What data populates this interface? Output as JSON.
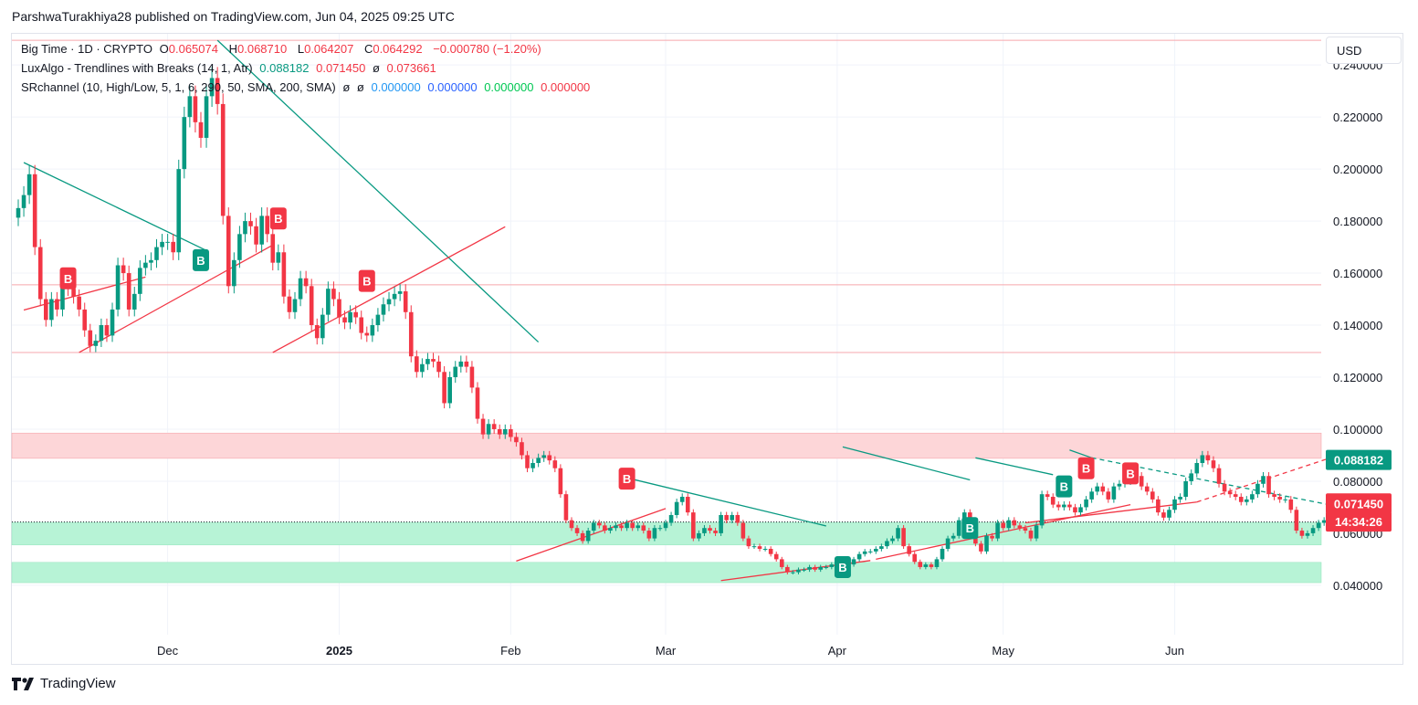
{
  "publisher_line": "ParshwaTurakhiya28 published on TradingView.com, Jun 04, 2025 09:25 UTC",
  "legend": {
    "symbol": "Big Time · 1D · CRYPTO",
    "o_label": "O",
    "o_value": "0.065074",
    "h_label": "H",
    "h_value": "0.068710",
    "l_label": "L",
    "l_value": "0.064207",
    "c_label": "C",
    "c_value": "0.064292",
    "change": "−0.000780 (−1.20%)",
    "indicator1": "LuxAlgo - Trendlines with Breaks (14, 1, Atr)",
    "ind1_v1": "0.088182",
    "ind1_v2": "0.071450",
    "ind1_v3": "ø",
    "ind1_v4": "0.073661",
    "indicator2": "SRchannel (10, High/Low, 5, 1, 6, 290, 50, SMA, 200, SMA)",
    "ind2_na1": "ø",
    "ind2_na2": "ø",
    "ind2_v1": "0.000000",
    "ind2_v2": "0.000000",
    "ind2_v3": "0.000000",
    "ind2_v4": "0.000000"
  },
  "currency_button": "USD",
  "branding": "TradingView",
  "colors": {
    "up": "#089981",
    "down": "#f23645",
    "support_zone": "#b7f3d6",
    "resistance_zone": "#fdd6d8",
    "trend_down": "#089981",
    "trend_up": "#f23645"
  },
  "chart_data": {
    "type": "candlestick",
    "symbol": "Big Time",
    "interval": "1D",
    "ylim": [
      0.021,
      0.252
    ],
    "y_ticks": [
      "0.240000",
      "0.220000",
      "0.200000",
      "0.180000",
      "0.160000",
      "0.140000",
      "0.120000",
      "0.100000",
      "0.080000",
      "0.060000",
      "0.040000"
    ],
    "x_ticks": [
      {
        "label": "Dec",
        "date": "2024-12-01",
        "bold": false
      },
      {
        "label": "2025",
        "date": "2025-01-01",
        "bold": true
      },
      {
        "label": "Feb",
        "date": "2025-02-01",
        "bold": false
      },
      {
        "label": "Mar",
        "date": "2025-03-01",
        "bold": false
      },
      {
        "label": "Apr",
        "date": "2025-04-01",
        "bold": false
      },
      {
        "label": "May",
        "date": "2025-05-01",
        "bold": false
      },
      {
        "label": "Jun",
        "date": "2025-06-01",
        "bold": false
      }
    ],
    "price_labels": [
      {
        "text": "0.088182",
        "value": 0.088182,
        "color": "#089981"
      },
      {
        "text": "0.071450",
        "value": 0.07145,
        "color": "#f23645"
      },
      {
        "text": "14:34:26",
        "value": 0.0645,
        "color": "#f23645"
      }
    ],
    "current_price": 0.064292,
    "zones": [
      {
        "kind": "resistance",
        "from": 0.0888,
        "to": 0.0985
      },
      {
        "kind": "support",
        "from": 0.0555,
        "to": 0.0642
      },
      {
        "kind": "support",
        "from": 0.041,
        "to": 0.0488
      }
    ],
    "horizontal_levels": [
      0.2495,
      0.1555,
      0.1295
    ],
    "trendlines": [
      {
        "color": "teal",
        "from": [
          "2024-11-05",
          0.2025
        ],
        "to": [
          "2024-12-08",
          0.1687
        ],
        "dashed": false
      },
      {
        "color": "teal",
        "from": [
          "2024-12-10",
          0.2495
        ],
        "to": [
          "2025-02-06",
          0.1335
        ],
        "dashed": false
      },
      {
        "color": "red",
        "from": [
          "2024-11-15",
          0.1295
        ],
        "to": [
          "2024-12-20",
          0.1708
        ],
        "dashed": false
      },
      {
        "color": "red",
        "from": [
          "2024-11-05",
          0.1458
        ],
        "to": [
          "2024-11-27",
          0.1585
        ],
        "dashed": false
      },
      {
        "color": "red",
        "from": [
          "2024-12-20",
          0.1295
        ],
        "to": [
          "2025-01-31",
          0.1778
        ],
        "dashed": false
      },
      {
        "color": "teal",
        "from": [
          "2025-02-21",
          0.0818
        ],
        "to": [
          "2025-03-30",
          0.0628
        ],
        "dashed": false
      },
      {
        "color": "red",
        "from": [
          "2025-02-02",
          0.0493
        ],
        "to": [
          "2025-03-01",
          0.0695
        ],
        "dashed": false
      },
      {
        "color": "red",
        "from": [
          "2025-03-11",
          0.0418
        ],
        "to": [
          "2025-04-07",
          0.0495
        ],
        "dashed": false
      },
      {
        "color": "teal",
        "from": [
          "2025-04-02",
          0.0932
        ],
        "to": [
          "2025-04-25",
          0.0805
        ],
        "dashed": false
      },
      {
        "color": "teal",
        "from": [
          "2025-04-26",
          0.089
        ],
        "to": [
          "2025-05-10",
          0.0825
        ],
        "dashed": false
      },
      {
        "color": "red",
        "from": [
          "2025-04-08",
          0.05
        ],
        "to": [
          "2025-05-24",
          0.071
        ],
        "dashed": false
      },
      {
        "color": "red",
        "from": [
          "2025-05-05",
          0.064
        ],
        "to": [
          "2025-06-05",
          0.072
        ],
        "dashed": false
      },
      {
        "color": "red",
        "from": [
          "2025-06-05",
          0.072
        ],
        "to": [
          "2025-07-02",
          0.091
        ],
        "dashed": true
      },
      {
        "color": "teal",
        "from": [
          "2025-05-13",
          0.092
        ],
        "to": [
          "2025-05-17",
          0.089
        ],
        "dashed": false
      },
      {
        "color": "teal",
        "from": [
          "2025-05-17",
          0.089
        ],
        "to": [
          "2025-06-30",
          0.0705
        ],
        "dashed": true
      }
    ],
    "signals": [
      {
        "type": "bearish",
        "label": "B",
        "date": "2024-11-13",
        "price": 0.158
      },
      {
        "type": "bullish",
        "label": "B",
        "date": "2024-12-07",
        "price": 0.165
      },
      {
        "type": "bearish",
        "label": "B",
        "date": "2024-12-21",
        "price": 0.181
      },
      {
        "type": "bearish",
        "label": "B",
        "date": "2025-01-06",
        "price": 0.157
      },
      {
        "type": "bearish",
        "label": "B",
        "date": "2025-02-22",
        "price": 0.081
      },
      {
        "type": "bullish",
        "label": "B",
        "date": "2025-04-02",
        "price": 0.047
      },
      {
        "type": "bullish",
        "label": "B",
        "date": "2025-04-25",
        "price": 0.062
      },
      {
        "type": "bullish",
        "label": "B",
        "date": "2025-05-12",
        "price": 0.078
      },
      {
        "type": "bearish",
        "label": "B",
        "date": "2025-05-16",
        "price": 0.085
      },
      {
        "type": "bearish",
        "label": "B",
        "date": "2025-05-24",
        "price": 0.083
      }
    ],
    "close_series_start": "2024-11-04",
    "close_series_interval": "1D",
    "close_series": [
      0.185,
      0.19,
      0.198,
      0.17,
      0.15,
      0.142,
      0.15,
      0.146,
      0.155,
      0.154,
      0.151,
      0.146,
      0.138,
      0.132,
      0.134,
      0.14,
      0.136,
      0.146,
      0.163,
      0.16,
      0.146,
      0.152,
      0.162,
      0.164,
      0.165,
      0.17,
      0.172,
      0.172,
      0.168,
      0.2,
      0.22,
      0.228,
      0.218,
      0.212,
      0.228,
      0.235,
      0.225,
      0.182,
      0.155,
      0.165,
      0.175,
      0.18,
      0.178,
      0.171,
      0.182,
      0.175,
      0.164,
      0.168,
      0.151,
      0.145,
      0.15,
      0.158,
      0.155,
      0.14,
      0.135,
      0.144,
      0.154,
      0.15,
      0.143,
      0.141,
      0.145,
      0.143,
      0.137,
      0.136,
      0.14,
      0.144,
      0.148,
      0.15,
      0.152,
      0.153,
      0.145,
      0.128,
      0.122,
      0.125,
      0.127,
      0.126,
      0.122,
      0.11,
      0.12,
      0.124,
      0.126,
      0.124,
      0.116,
      0.104,
      0.098,
      0.102,
      0.1,
      0.098,
      0.1,
      0.097,
      0.095,
      0.09,
      0.085,
      0.087,
      0.089,
      0.09,
      0.088,
      0.085,
      0.075,
      0.065,
      0.062,
      0.06,
      0.057,
      0.061,
      0.064,
      0.063,
      0.061,
      0.062,
      0.063,
      0.062,
      0.064,
      0.062,
      0.063,
      0.061,
      0.058,
      0.062,
      0.062,
      0.064,
      0.067,
      0.072,
      0.074,
      0.068,
      0.058,
      0.06,
      0.062,
      0.061,
      0.06,
      0.067,
      0.065,
      0.067,
      0.064,
      0.058,
      0.055,
      0.055,
      0.054,
      0.054,
      0.052,
      0.05,
      0.047,
      0.045,
      0.045,
      0.046,
      0.046,
      0.047,
      0.046,
      0.047,
      0.047,
      0.048,
      0.048,
      0.049,
      0.048,
      0.05,
      0.052,
      0.053,
      0.053,
      0.054,
      0.055,
      0.057,
      0.058,
      0.062,
      0.055,
      0.052,
      0.049,
      0.047,
      0.048,
      0.047,
      0.05,
      0.054,
      0.058,
      0.059,
      0.065,
      0.068,
      0.06,
      0.056,
      0.053,
      0.059,
      0.058,
      0.064,
      0.062,
      0.065,
      0.063,
      0.062,
      0.061,
      0.058,
      0.063,
      0.075,
      0.074,
      0.071,
      0.07,
      0.071,
      0.07,
      0.068,
      0.07,
      0.073,
      0.076,
      0.078,
      0.076,
      0.073,
      0.078,
      0.079,
      0.08,
      0.081,
      0.082,
      0.078,
      0.076,
      0.073,
      0.068,
      0.066,
      0.069,
      0.073,
      0.074,
      0.08,
      0.083,
      0.087,
      0.09,
      0.088,
      0.085,
      0.079,
      0.076,
      0.075,
      0.074,
      0.072,
      0.073,
      0.075,
      0.079,
      0.082,
      0.075,
      0.074,
      0.073,
      0.073,
      0.069,
      0.061,
      0.059,
      0.06,
      0.062,
      0.064,
      0.065,
      0.064
    ]
  }
}
